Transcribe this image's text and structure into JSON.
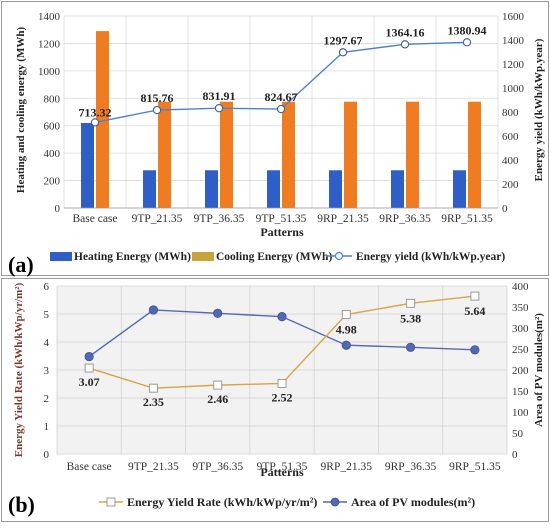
{
  "figure": {
    "panels": [
      "(a)",
      "(b)"
    ]
  },
  "colors": {
    "heating": "#2e5ec6",
    "cooling": "#f07c21",
    "energy_line": "#4f7fd4",
    "yield_rate_line": "#d7a545",
    "area_line": "#5268b5",
    "grid": "#d9d9d9",
    "panel_b_bg": "#f2f2f2"
  },
  "chart_data": [
    {
      "panel": "(a)",
      "type": "bar",
      "categories": [
        "Base case",
        "9TP_21.35",
        "9TP_36.35",
        "9TP_51.35",
        "9RP_21.35",
        "9RP_36.35",
        "9RP_51.35"
      ],
      "xlabel": "Patterns",
      "ylabel_left": "Heating and cooling energy (MWh)",
      "ylabel_right": "Energy yield (kWh/kWp.year)",
      "ylim_left": [
        0,
        1400
      ],
      "ylim_right": [
        0,
        1600
      ],
      "yticks_left": [
        "0",
        "200",
        "400",
        "600",
        "800",
        "1000",
        "1200",
        "1400"
      ],
      "yticks_right": [
        "0",
        "200",
        "400",
        "600",
        "800",
        "1000",
        "1200",
        "1400",
        "1600"
      ],
      "series": [
        {
          "name": "Heating Energy (MWh)",
          "type": "bar",
          "axis": "left",
          "values": [
            620,
            275,
            275,
            275,
            275,
            275,
            275
          ]
        },
        {
          "name": "Cooling Energy (MWh)",
          "type": "bar",
          "axis": "left",
          "values": [
            1290,
            775,
            775,
            775,
            775,
            775,
            775
          ]
        },
        {
          "name": "Energy yield (kWh/kWp.year)",
          "type": "line",
          "axis": "right",
          "values": [
            713.32,
            815.76,
            831.91,
            824.67,
            1297.67,
            1364.16,
            1380.94
          ],
          "labels": [
            "713.32",
            "815.76",
            "831.91",
            "824.67",
            "1297.67",
            "1364.16",
            "1380.94"
          ]
        }
      ],
      "grid": true,
      "legend": "bottom"
    },
    {
      "panel": "(b)",
      "type": "line",
      "categories": [
        "Base case",
        "9TP_21.35",
        "9TP_36.35",
        "9TP_51.35",
        "9RP_21.35",
        "9RP_36.35",
        "9RP_51.35"
      ],
      "xlabel": "Patterns",
      "ylabel_left": "Energy Yield Rate (kWh/kWp/yr/m²)",
      "ylabel_right": "Area of PV modules(m²)",
      "ylim_left": [
        0,
        6
      ],
      "ylim_right": [
        0,
        400
      ],
      "yticks_left": [
        "0",
        "1",
        "2",
        "3",
        "4",
        "5",
        "6"
      ],
      "yticks_right": [
        "0",
        "50",
        "100",
        "150",
        "200",
        "250",
        "300",
        "350",
        "400"
      ],
      "series": [
        {
          "name": "Energy Yield Rate (kWh/kWp/yr/m²)",
          "axis": "left",
          "marker": "square",
          "values": [
            3.07,
            2.35,
            2.46,
            2.52,
            4.98,
            5.38,
            5.64
          ],
          "labels": [
            "3.07",
            "2.35",
            "2.46",
            "2.52",
            "4.98",
            "5.38",
            "5.64"
          ]
        },
        {
          "name": "Area of PV modules(m²)",
          "axis": "right",
          "marker": "circle",
          "values": [
            232,
            343,
            335,
            327,
            259,
            254,
            248
          ]
        }
      ],
      "grid": true,
      "legend": "bottom"
    }
  ]
}
